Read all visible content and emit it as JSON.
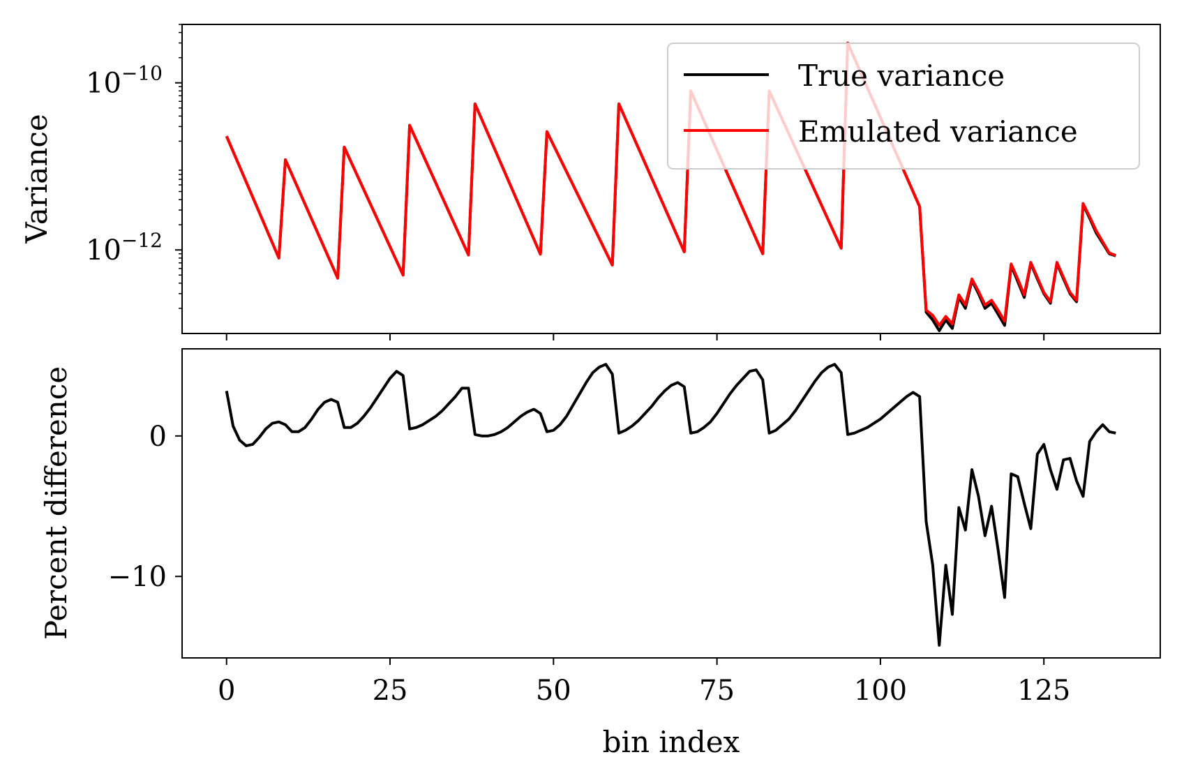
{
  "chart_data": [
    {
      "type": "line",
      "ylabel": "Variance",
      "yscale": "log",
      "ylim": [
        1e-13,
        5e-10
      ],
      "xlim": [
        -6.8,
        142.8
      ],
      "yticks": [
        {
          "value": 1e-10,
          "base": "10",
          "exp": "−10"
        },
        {
          "value": 1e-12,
          "base": "10",
          "exp": "−12"
        }
      ],
      "xticks_labeled": false,
      "xticks": [
        0,
        25,
        50,
        75,
        100,
        125
      ],
      "legend": {
        "placement": "top-right",
        "entries": [
          {
            "label": "True variance",
            "color": "#000000"
          },
          {
            "label": "Emulated variance",
            "color": "#ff0000"
          }
        ]
      },
      "series": [
        {
          "name": "True variance",
          "color": "#000000",
          "x": [
            0,
            8,
            9,
            17,
            18,
            27,
            28,
            37,
            38,
            48,
            49,
            59,
            60,
            70,
            71,
            82,
            83,
            94,
            95,
            106,
            107,
            108,
            109,
            110,
            111,
            112,
            113,
            114,
            115,
            116,
            117,
            118,
            119,
            120,
            121,
            122,
            123,
            124,
            125,
            126,
            127,
            128,
            129,
            130,
            131,
            132,
            133,
            134,
            135,
            136
          ],
          "y": [
            2.3e-11,
            8e-13,
            1.2e-11,
            4.6e-13,
            1.7e-11,
            5e-13,
            3.1e-11,
            8.7e-13,
            5.6e-11,
            8.9e-13,
            2.6e-11,
            6.6e-13,
            5.6e-11,
            9.5e-13,
            8e-11,
            9e-13,
            8e-11,
            1.05e-12,
            3e-10,
            3.3e-12,
            1.8e-13,
            1.45e-13,
            1.08e-13,
            1.45e-13,
            1.15e-13,
            2.7e-13,
            2e-13,
            4.3e-13,
            3e-13,
            2e-13,
            2.3e-13,
            1.7e-13,
            1.25e-13,
            6.5e-13,
            4.2e-13,
            2.7e-13,
            6.9e-13,
            4.5e-13,
            3e-13,
            2.3e-13,
            6.9e-13,
            4.5e-13,
            3e-13,
            2.4e-13,
            3.5e-12,
            2.4e-12,
            1.6e-12,
            1.2e-12,
            9e-13,
            8.5e-13
          ]
        },
        {
          "name": "Emulated variance",
          "color": "#ff0000",
          "x": [
            0,
            8,
            9,
            17,
            18,
            27,
            28,
            37,
            38,
            48,
            49,
            59,
            60,
            70,
            71,
            82,
            83,
            94,
            95,
            106,
            107,
            108,
            109,
            110,
            111,
            112,
            113,
            114,
            115,
            116,
            117,
            118,
            119,
            120,
            121,
            122,
            123,
            124,
            125,
            126,
            127,
            128,
            129,
            130,
            131,
            132,
            133,
            134,
            135,
            136
          ],
          "y": [
            2.3e-11,
            8e-13,
            1.2e-11,
            4.6e-13,
            1.7e-11,
            5e-13,
            3.1e-11,
            8.7e-13,
            5.6e-11,
            8.9e-13,
            2.6e-11,
            6.6e-13,
            5.6e-11,
            9.5e-13,
            8e-11,
            9e-13,
            8e-11,
            1.05e-12,
            3e-10,
            3.3e-12,
            1.9e-13,
            1.65e-13,
            1.25e-13,
            1.6e-13,
            1.3e-13,
            2.9e-13,
            2.2e-13,
            4.5e-13,
            3.2e-13,
            2.2e-13,
            2.5e-13,
            1.9e-13,
            1.4e-13,
            6.8e-13,
            4.5e-13,
            2.9e-13,
            7.1e-13,
            4.7e-13,
            3.1e-13,
            2.4e-13,
            7.1e-13,
            4.7e-13,
            3.1e-13,
            2.5e-13,
            3.6e-12,
            2.5e-12,
            1.7e-12,
            1.25e-12,
            9.2e-13,
            8.6e-13
          ]
        }
      ]
    },
    {
      "type": "line",
      "ylabel": "Percent difference",
      "xlabel": "bin index",
      "ylim": [
        -15.8,
        6.2
      ],
      "xlim": [
        -6.8,
        142.8
      ],
      "yticks": [
        {
          "value": 0,
          "label": "0"
        },
        {
          "value": -10,
          "label": "−10"
        }
      ],
      "xticks": [
        {
          "value": 0,
          "label": "0"
        },
        {
          "value": 25,
          "label": "25"
        },
        {
          "value": 50,
          "label": "50"
        },
        {
          "value": 75,
          "label": "75"
        },
        {
          "value": 100,
          "label": "100"
        },
        {
          "value": 125,
          "label": "125"
        }
      ],
      "series": [
        {
          "color": "#000000",
          "x": [
            0,
            1,
            2,
            3,
            4,
            5,
            6,
            7,
            8,
            9,
            10,
            11,
            12,
            13,
            14,
            15,
            16,
            17,
            18,
            19,
            20,
            21,
            22,
            23,
            24,
            25,
            26,
            27,
            28,
            29,
            30,
            31,
            32,
            33,
            34,
            35,
            36,
            37,
            38,
            39,
            40,
            41,
            42,
            43,
            44,
            45,
            46,
            47,
            48,
            49,
            50,
            51,
            52,
            53,
            54,
            55,
            56,
            57,
            58,
            59,
            60,
            61,
            62,
            63,
            64,
            65,
            66,
            67,
            68,
            69,
            70,
            71,
            72,
            73,
            74,
            75,
            76,
            77,
            78,
            79,
            80,
            81,
            82,
            83,
            84,
            85,
            86,
            87,
            88,
            89,
            90,
            91,
            92,
            93,
            94,
            95,
            96,
            97,
            98,
            99,
            100,
            101,
            102,
            103,
            104,
            105,
            106,
            107,
            108,
            109,
            110,
            111,
            112,
            113,
            114,
            115,
            116,
            117,
            118,
            119,
            120,
            121,
            122,
            123,
            124,
            125,
            126,
            127,
            128,
            129,
            130,
            131,
            132,
            133,
            134,
            135,
            136
          ],
          "y": [
            3.2,
            0.7,
            -0.3,
            -0.7,
            -0.6,
            -0.1,
            0.5,
            0.9,
            1.0,
            0.8,
            0.3,
            0.3,
            0.6,
            1.2,
            1.9,
            2.4,
            2.6,
            2.4,
            0.6,
            0.6,
            0.9,
            1.4,
            2.0,
            2.7,
            3.4,
            4.1,
            4.6,
            4.3,
            0.5,
            0.6,
            0.8,
            1.1,
            1.4,
            1.8,
            2.3,
            2.8,
            3.4,
            3.4,
            0.1,
            0.0,
            0.0,
            0.1,
            0.3,
            0.6,
            1.0,
            1.4,
            1.7,
            1.9,
            1.6,
            0.3,
            0.4,
            0.8,
            1.4,
            2.2,
            3.0,
            3.8,
            4.5,
            4.9,
            5.1,
            4.4,
            0.2,
            0.4,
            0.7,
            1.1,
            1.6,
            2.1,
            2.7,
            3.2,
            3.6,
            3.8,
            3.5,
            0.2,
            0.3,
            0.6,
            1.0,
            1.6,
            2.3,
            3.0,
            3.6,
            4.1,
            4.6,
            4.7,
            4.0,
            0.2,
            0.4,
            0.8,
            1.2,
            1.8,
            2.5,
            3.2,
            3.9,
            4.5,
            4.9,
            5.1,
            4.5,
            0.1,
            0.2,
            0.4,
            0.6,
            0.9,
            1.2,
            1.6,
            2.0,
            2.4,
            2.8,
            3.1,
            2.8,
            -6.1,
            -9.2,
            -14.9,
            -9.2,
            -12.7,
            -5.1,
            -6.7,
            -2.4,
            -4.3,
            -7.1,
            -5.0,
            -8.1,
            -11.5,
            -2.7,
            -2.9,
            -4.8,
            -6.6,
            -1.3,
            -0.6,
            -2.4,
            -3.8,
            -1.7,
            -1.6,
            -3.2,
            -4.3,
            -0.4,
            0.3,
            0.8,
            0.3,
            0.2
          ]
        }
      ]
    }
  ]
}
